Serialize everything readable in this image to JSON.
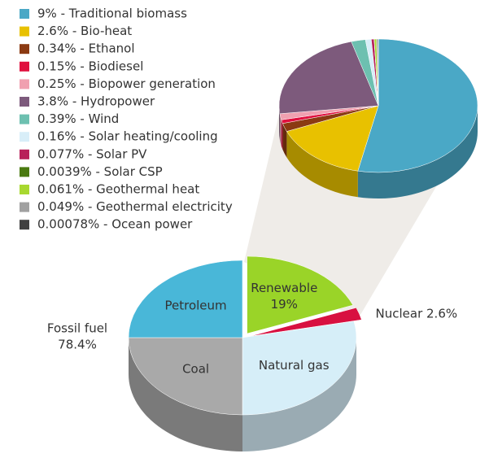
{
  "chart_data": [
    {
      "type": "pie",
      "categories": [
        "Renewable",
        "Nuclear",
        "Natural gas",
        "Coal",
        "Petroleum"
      ],
      "values": [
        19,
        2.6,
        28.4,
        25,
        25
      ],
      "value_labels": {
        "0": "19%",
        "1": "2.6%"
      },
      "colors": [
        "#9ad428",
        "#d81040",
        "#d6eef8",
        "#a9a9a9",
        "#49b7d8"
      ],
      "group": {
        "name": "Fossil fuel",
        "value": 78.4,
        "value_label": "78.4%"
      }
    },
    {
      "type": "pie",
      "categories": [
        "9% - Traditional biomass",
        "2.6% - Bio-heat",
        "0.34% - Ethanol",
        "0.15% - Biodiesel",
        "0.25% - Biopower generation",
        "3.8% - Hydropower",
        "0.39% - Wind",
        "0.16% - Solar heating/cooling",
        "0.077% - Solar PV",
        "0.0039% - Solar CSP",
        "0.061% - Geothermal heat",
        "0.049% - Geothermal electricity",
        "0.00078% - Ocean power"
      ],
      "values": [
        9,
        2.6,
        0.34,
        0.15,
        0.25,
        3.8,
        0.39,
        0.16,
        0.077,
        0.0039,
        0.061,
        0.049,
        0.00078
      ],
      "colors": [
        "#4aa8c6",
        "#e8c100",
        "#8b3a12",
        "#e0103e",
        "#f0a0b0",
        "#7d5a7c",
        "#6dc0b0",
        "#d8eef8",
        "#b8205a",
        "#4a7a10",
        "#a8d830",
        "#a0a0a0",
        "#404040"
      ],
      "legend": "top-left"
    }
  ]
}
